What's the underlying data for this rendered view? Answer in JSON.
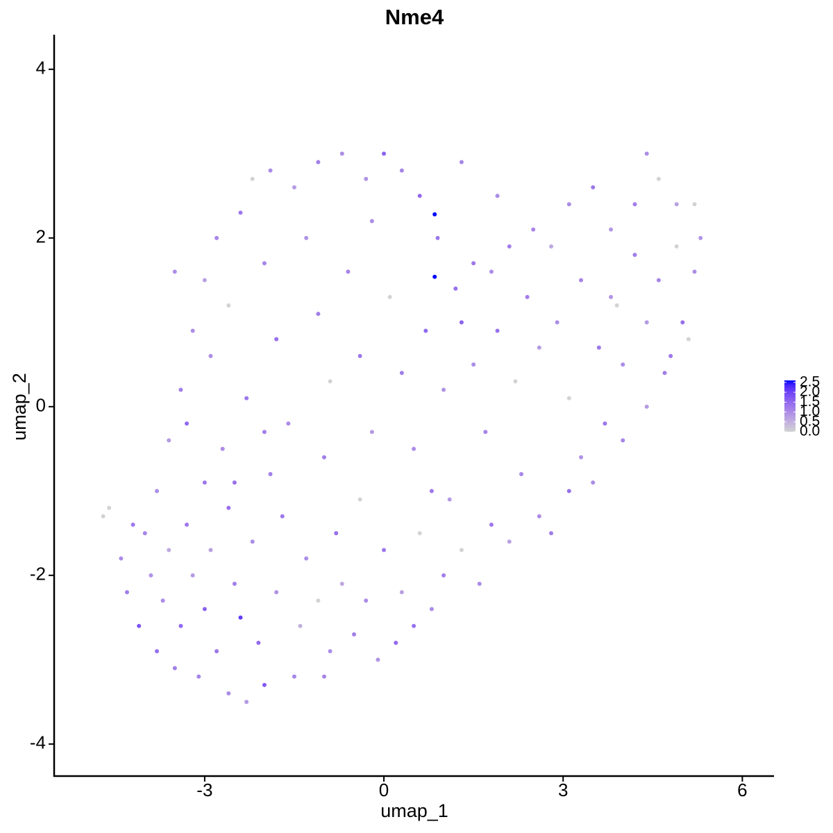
{
  "chart_data": {
    "type": "scatter",
    "title": "Nme4",
    "x_label": "umap_1",
    "y_label": "umap_2",
    "xlim": [
      -5.52,
      6.53
    ],
    "ylim": [
      -4.38,
      4.41
    ],
    "xticks": [
      -3,
      0,
      3,
      6
    ],
    "yticks": [
      -4,
      -2,
      0,
      2,
      4
    ],
    "x": [
      -4.7,
      -4.6,
      -4.4,
      -4.3,
      -4.1,
      -4.0,
      -3.9,
      -3.8,
      -3.7,
      -3.6,
      -3.5,
      -3.4,
      -3.3,
      -3.2,
      -3.1,
      -3.0,
      -3.0,
      -2.9,
      -2.8,
      -2.7,
      -2.6,
      -2.6,
      -2.5,
      -2.4,
      -2.3,
      -2.2,
      -2.1,
      -2.0,
      -1.9,
      -1.8,
      -1.7,
      -1.5,
      -1.4,
      -1.3,
      -1.1,
      -1.0,
      -0.9,
      -0.8,
      -0.7,
      -0.5,
      -0.4,
      -0.3,
      -0.1,
      0.0,
      0.2,
      0.3,
      0.5,
      0.6,
      0.8,
      1.0,
      1.1,
      1.3,
      1.6,
      1.8,
      2.1,
      2.3,
      2.6,
      2.8,
      3.1,
      3.3,
      3.5,
      3.7,
      4.0,
      4.4,
      4.7,
      5.0,
      5.1,
      5.2,
      5.3,
      5.2,
      4.9,
      4.6,
      4.4,
      4.2,
      3.8,
      3.5,
      3.1,
      2.8,
      2.5,
      2.1,
      1.8,
      1.5,
      1.2,
      0.85,
      0.85,
      0.6,
      0.3,
      0.0,
      -0.3,
      -0.7,
      -1.1,
      -1.5,
      -1.9,
      -2.2,
      -2.4,
      -2.8,
      -3.0,
      -3.2,
      -3.4,
      -3.6,
      -3.3,
      -2.9,
      -2.6,
      -2.3,
      -2.0,
      -1.8,
      -1.6,
      -1.3,
      -1.1,
      -0.9,
      -0.6,
      -0.4,
      -0.2,
      0.1,
      0.3,
      0.5,
      0.7,
      0.9,
      1.0,
      1.3,
      1.5,
      1.7,
      1.9,
      2.2,
      2.4,
      2.6,
      2.9,
      3.1,
      3.3,
      3.6,
      3.8,
      4.0,
      4.2,
      4.4,
      4.6,
      4.8,
      4.9,
      3.9,
      -3.8,
      -4.2,
      -1.0,
      -2.0,
      0.8,
      -0.2,
      -2.5,
      1.9,
      1.3,
      -3.5
    ],
    "y": [
      -1.3,
      -1.2,
      -1.8,
      -2.2,
      -2.6,
      -1.5,
      -2.0,
      -2.9,
      -2.3,
      -1.7,
      -3.1,
      -2.6,
      -1.4,
      -2.0,
      -3.2,
      -0.9,
      -2.4,
      -1.7,
      -2.9,
      -0.5,
      -1.2,
      -3.4,
      -2.1,
      -2.5,
      -3.5,
      -1.6,
      -2.8,
      -3.3,
      -0.8,
      -2.2,
      -1.3,
      -3.2,
      -2.6,
      -1.8,
      -2.3,
      -0.6,
      -2.9,
      -1.5,
      -2.1,
      -2.7,
      -1.1,
      -2.3,
      -3.0,
      -1.7,
      -2.8,
      -2.2,
      -2.6,
      -1.5,
      -2.4,
      -2.0,
      -1.1,
      -1.7,
      -2.1,
      -1.4,
      -1.6,
      -0.8,
      -1.3,
      -1.5,
      -1.0,
      -0.6,
      -0.9,
      -0.2,
      -0.4,
      0.0,
      0.4,
      1.0,
      0.8,
      1.6,
      2.0,
      2.4,
      2.4,
      2.7,
      3.0,
      2.4,
      2.1,
      2.6,
      2.4,
      1.9,
      2.1,
      1.9,
      1.6,
      1.7,
      1.4,
      1.54,
      2.28,
      2.5,
      2.8,
      3.0,
      2.7,
      3.0,
      2.9,
      2.6,
      2.8,
      2.7,
      2.3,
      2.0,
      1.5,
      0.9,
      0.2,
      -0.4,
      -0.2,
      0.6,
      1.2,
      0.1,
      1.7,
      0.8,
      -0.2,
      2.0,
      1.1,
      0.3,
      1.6,
      0.6,
      -0.3,
      1.3,
      0.4,
      -0.5,
      0.9,
      2.0,
      0.2,
      1.0,
      0.5,
      -0.3,
      0.9,
      0.3,
      1.3,
      0.7,
      1.0,
      0.1,
      1.5,
      0.7,
      1.3,
      0.5,
      1.8,
      1.0,
      1.5,
      0.6,
      1.9,
      1.2,
      -1.0,
      -1.4,
      -3.2,
      -0.3,
      -1.0,
      2.2,
      -0.9,
      2.5,
      2.9,
      1.6
    ],
    "values": [
      0,
      0,
      1.0,
      1.2,
      1.8,
      1.1,
      0.9,
      1.4,
      1.0,
      0.6,
      1.2,
      1.5,
      1.3,
      0.8,
      1.1,
      1.3,
      1.6,
      0.7,
      1.3,
      1.0,
      1.4,
      1.0,
      1.2,
      2.1,
      0.8,
      1.0,
      1.5,
      1.7,
      1.2,
      0.9,
      1.3,
      1.1,
      0.5,
      1.0,
      0,
      1.2,
      1.0,
      1.4,
      0.6,
      1.2,
      0,
      1.0,
      0.9,
      1.3,
      1.5,
      0.7,
      1.4,
      0,
      1.0,
      1.2,
      0.8,
      0,
      1.0,
      1.3,
      0.7,
      1.1,
      1.0,
      1.2,
      1.4,
      0.9,
      1.0,
      1.3,
      1.1,
      0.8,
      1.2,
      1.4,
      0,
      1.0,
      0.9,
      0,
      0.7,
      0,
      1.0,
      1.2,
      0.8,
      1.3,
      1.0,
      0.6,
      1.1,
      1.2,
      1.0,
      1.3,
      1.4,
      2.6,
      2.6,
      1.5,
      1.1,
      1.6,
      0.9,
      1.0,
      1.2,
      0.8,
      1.0,
      0,
      1.3,
      1.1,
      0.7,
      1.0,
      1.2,
      0.8,
      1.5,
      1.0,
      0,
      1.3,
      1.1,
      1.4,
      1.0,
      0.9,
      1.2,
      0,
      1.1,
      1.3,
      0.8,
      0,
      1.2,
      1.0,
      1.5,
      1.3,
      0.9,
      1.6,
      1.0,
      1.1,
      1.4,
      0,
      1.2,
      0.8,
      1.0,
      0,
      1.1,
      1.3,
      0.9,
      1.0,
      1.2,
      0.8,
      1.1,
      1.3,
      0,
      0,
      1.0,
      1.3,
      1.1,
      1.2,
      1.3,
      1.0,
      1.4,
      1.0,
      1.1,
      1.0
    ],
    "color_scale": {
      "low": "#d3d3d3",
      "high": "#0000ff",
      "limits": [
        0,
        2.6
      ],
      "ticks": [
        {
          "value": 0,
          "label": "0.0"
        },
        {
          "value": 0.5,
          "label": "0.5"
        },
        {
          "value": 1,
          "label": "1.0"
        },
        {
          "value": 1.5,
          "label": "1.5"
        },
        {
          "value": 2,
          "label": "2.0"
        },
        {
          "value": 2.5,
          "label": "2.5"
        }
      ]
    }
  }
}
